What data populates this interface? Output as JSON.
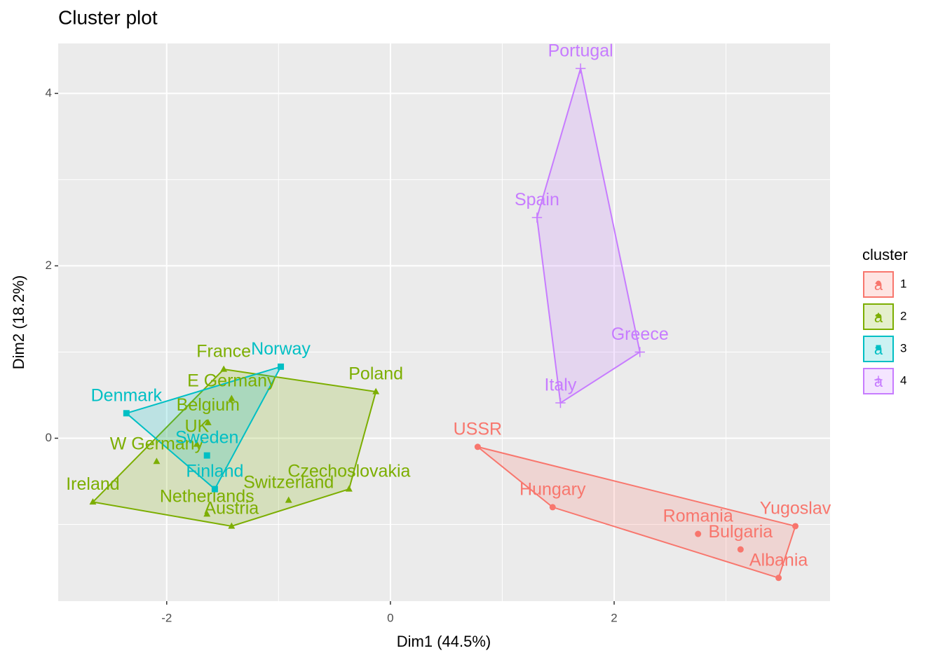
{
  "chart_data": {
    "type": "scatter",
    "title": "Cluster plot",
    "x_label": "Dim1 (44.5%)",
    "y_label": "Dim2 (18.2%)",
    "xlim": [
      -2.97,
      3.93
    ],
    "ylim": [
      -1.89,
      4.58
    ],
    "xticks": [
      -2,
      0,
      2
    ],
    "yticks": [
      0,
      2,
      4
    ],
    "grid": true,
    "legend_title": "cluster",
    "legend_position": "right",
    "legend_key_text": "a",
    "series": [
      {
        "name": "1",
        "color": "#F8766D",
        "shape": "circle",
        "labels": [
          "USSR",
          "Hungary",
          "Romania",
          "Bulgaria",
          "Albania",
          "Yugoslav"
        ],
        "x": [
          0.78,
          1.45,
          2.75,
          3.13,
          3.47,
          3.62
        ],
        "values": [
          -0.1,
          -0.8,
          -1.11,
          -1.29,
          -1.62,
          -1.02
        ]
      },
      {
        "name": "2",
        "color": "#7CAE00",
        "shape": "triangle",
        "labels": [
          "France",
          "E Germany",
          "Poland",
          "Belgium",
          "UK",
          "W Germany",
          "Ireland",
          "Czechoslovakia",
          "Switzerland",
          "Netherlands",
          "Austria"
        ],
        "x": [
          -1.49,
          -1.42,
          -0.13,
          -1.63,
          -1.73,
          -2.09,
          -2.66,
          -0.37,
          -0.91,
          -1.64,
          -1.42
        ],
        "values": [
          0.8,
          0.46,
          0.54,
          0.18,
          -0.07,
          -0.27,
          -0.74,
          -0.59,
          -0.72,
          -0.88,
          -1.02
        ]
      },
      {
        "name": "3",
        "color": "#00BFC4",
        "shape": "square",
        "labels": [
          "Norway",
          "Denmark",
          "Sweden",
          "Finland"
        ],
        "x": [
          -0.98,
          -2.36,
          -1.64,
          -1.57
        ],
        "values": [
          0.83,
          0.29,
          -0.2,
          -0.59
        ]
      },
      {
        "name": "4",
        "color": "#C77CFF",
        "shape": "plus",
        "labels": [
          "Portugal",
          "Spain",
          "Greece",
          "Italy"
        ],
        "x": [
          1.7,
          1.31,
          2.23,
          1.52
        ],
        "values": [
          4.29,
          2.56,
          1.0,
          0.41
        ]
      }
    ]
  }
}
